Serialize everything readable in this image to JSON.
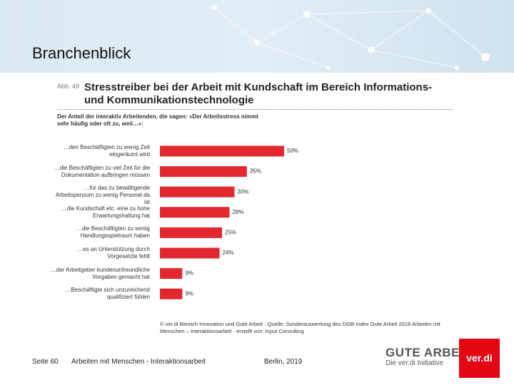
{
  "slide": {
    "title": "Branchenblick",
    "page": "Seite 60",
    "footer": "Arbeiten mit Menschen - Interaktionsarbeit",
    "date": "Berlin, 2019",
    "logo_main": "GUTE ARBEIT",
    "logo_sub": "Die ver.di Initiative",
    "logo_verdi": "ver.di"
  },
  "chart_data": {
    "type": "bar",
    "orientation": "horizontal",
    "figure_label": "Abb. 49",
    "title": "Stresstreiber bei der Arbeit mit Kundschaft im Bereich Informations- und Kommunikationstechnologie",
    "subtitle": "Der Anteil der interaktiv Arbeitenden, die sagen: »Der Arbeitsstress nimmt sehr häufig oder oft zu, weil…«:",
    "categories": [
      "…den Beschäftigten zu wenig Zeit eingeräumt wird",
      "…die Beschäftigten zu viel Zeit für die Dokumentation aufbringen müssen",
      "…für das zu bewältigende Arbeitspensum zu wenig Personal da ist",
      "…die Kundschaft etc. eine zu hohe Erwartungshaltung hat",
      "…die Beschäftigten zu wenig Handlungsspielraum haben",
      "…es an Unterstützung durch Vorgesetzte fehlt",
      "…der Arbeitgeber kundenunfreundliche Vorgaben gemacht hat",
      "…Beschäftigte sich unzureichend qualifiziert fühlen"
    ],
    "values": [
      50,
      35,
      30,
      28,
      25,
      24,
      9,
      9
    ],
    "value_labels": [
      "50%",
      "35%",
      "30%",
      "28%",
      "25%",
      "24%",
      "9%",
      "9%"
    ],
    "color": "#e2272e",
    "xlim": [
      0,
      50
    ],
    "source": "© ver.di Bereich Innovation und Gute Arbeit · Quelle: Sonderauswertung des DGB-Index Gute Arbeit 2018 Arbeiten mit Menschen – Interaktionsarbeit · erstellt von: Input Consulting"
  }
}
